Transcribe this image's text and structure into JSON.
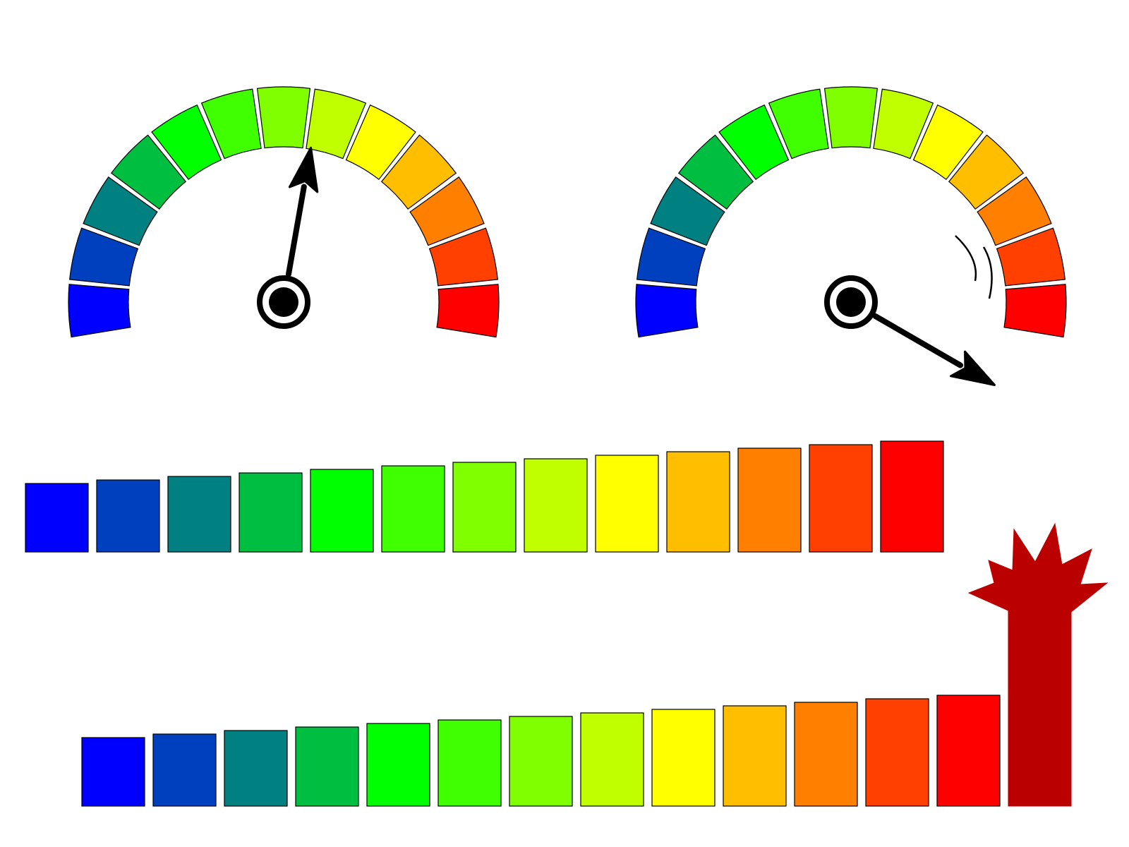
{
  "palette": [
    "#0000ff",
    "#0040bf",
    "#008080",
    "#00bf40",
    "#00ff00",
    "#40ff00",
    "#80ff00",
    "#bfff00",
    "#ffff00",
    "#ffbf00",
    "#ff8000",
    "#ff4000",
    "#ff0000"
  ],
  "overflow_color": "#bb0000",
  "outline_color": "#000000",
  "gauges": [
    {
      "name": "gauge-normal",
      "level": 0.55,
      "overflow": false,
      "needle_icon": "needle-arrow-icon"
    },
    {
      "name": "gauge-overload",
      "level": 1.1,
      "overflow": true,
      "needle_icon": "needle-arrow-icon",
      "motion_icon": "vibration-lines-icon"
    }
  ],
  "bar_meters": [
    {
      "name": "bar-meter-normal",
      "segments": 13,
      "overflow": false
    },
    {
      "name": "bar-meter-overload",
      "segments": 13,
      "overflow": true,
      "overflow_icon": "burst-explosion-icon"
    }
  ]
}
